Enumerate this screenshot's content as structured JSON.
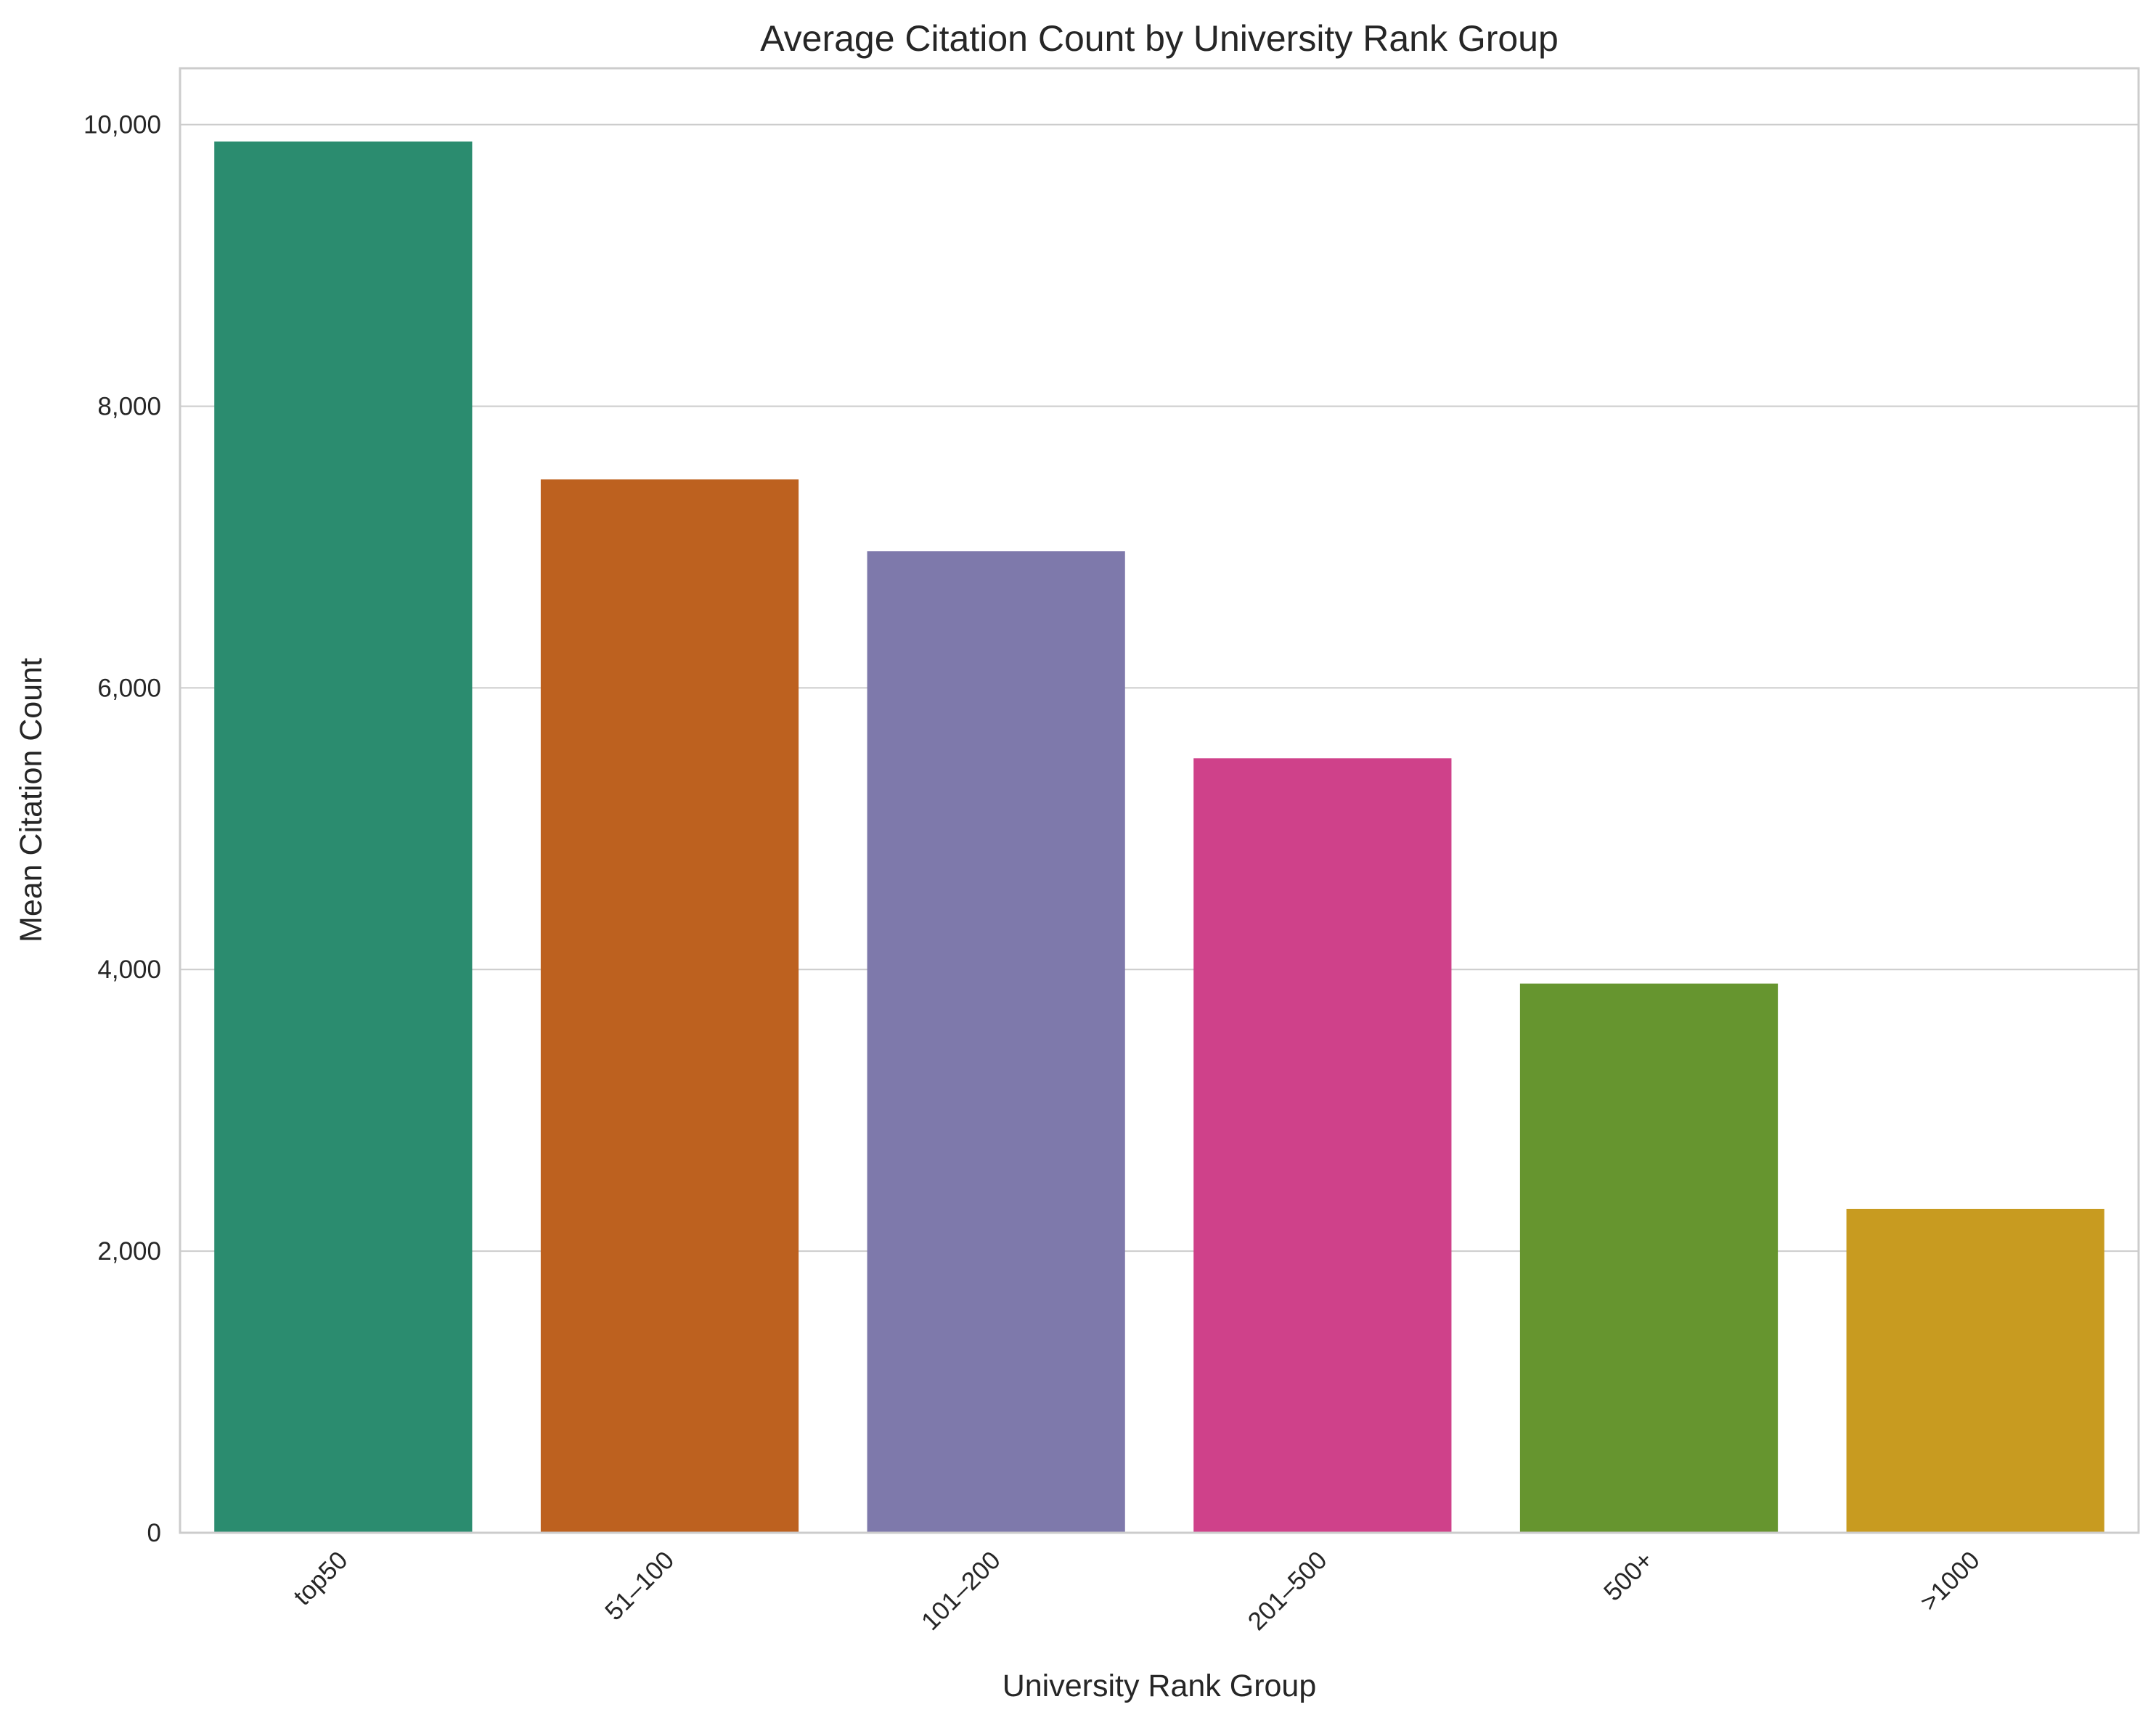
{
  "chart_data": {
    "type": "bar",
    "title": "Average Citation Count by University Rank Group",
    "xlabel": "University Rank Group",
    "ylabel": "Mean Citation Count",
    "categories": [
      "top50",
      "51–100",
      "101–200",
      "201–500",
      "500+",
      ">1000"
    ],
    "values": [
      9880,
      7480,
      6970,
      5500,
      3900,
      2300
    ],
    "colors": [
      "#2b8c6f",
      "#bd611f",
      "#7e79ab",
      "#cf418a",
      "#66952f",
      "#c89b20"
    ],
    "ylim": [
      0,
      10400
    ],
    "yticks": [
      0,
      2000,
      4000,
      6000,
      8000,
      10000
    ],
    "ytick_labels": [
      "0",
      "2,000",
      "4,000",
      "6,000",
      "8,000",
      "10,000"
    ],
    "grid": "horizontal",
    "legend": "none"
  }
}
